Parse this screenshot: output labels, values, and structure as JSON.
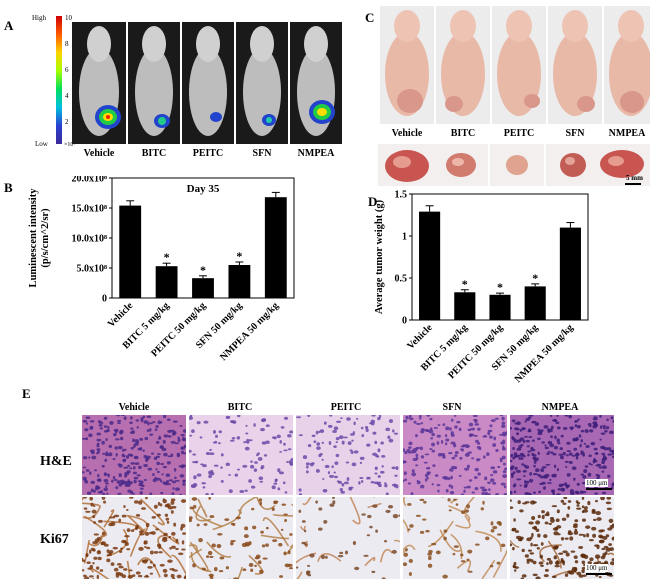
{
  "panels": {
    "a": "A",
    "b": "B",
    "c": "C",
    "d": "D",
    "e": "E"
  },
  "groups": [
    "Vehicle",
    "BITC",
    "PEITC",
    "SFN",
    "NMPEA"
  ],
  "colorbar": {
    "high": "High",
    "low": "Low",
    "ticks": [
      "10",
      "8",
      "6",
      "4",
      "2"
    ],
    "unit": "×10⁶"
  },
  "scale": {
    "tumor": "5 mm",
    "histo": "100 μm"
  },
  "rows": {
    "he": "H&E",
    "ki67": "Ki67"
  },
  "chart_data": [
    {
      "type": "bar",
      "title": "Day 35",
      "ylabel_lines": [
        "Luminescent intensity",
        "(p/s/cm^2/sr)"
      ],
      "categories": [
        "Vehicle",
        "BITC 5 mg/kg",
        "PEITC 50 mg/kg",
        "SFN 50 mg/kg",
        "NMPEA 50 mg/kg"
      ],
      "values": [
        15.4,
        5.3,
        3.3,
        5.5,
        16.8
      ],
      "errors": [
        0.8,
        0.5,
        0.4,
        0.5,
        0.8
      ],
      "significant": [
        false,
        true,
        true,
        true,
        false
      ],
      "ylim": [
        0,
        20
      ],
      "yticks": [
        "0",
        "5.0x10⁸",
        "10.0x10⁸",
        "15.0x10⁸",
        "20.0x10⁸"
      ],
      "ytick_values": [
        0,
        5,
        10,
        15,
        20
      ]
    },
    {
      "type": "bar",
      "ylabel": "Average tumor weight (g)",
      "categories": [
        "Vehicle",
        "BITC 5 mg/kg",
        "PEITC 50 mg/kg",
        "SFN 50 mg/kg",
        "NMPEA 50 mg/kg"
      ],
      "values": [
        1.29,
        0.33,
        0.3,
        0.4,
        1.1
      ],
      "errors": [
        0.07,
        0.03,
        0.02,
        0.03,
        0.06
      ],
      "significant": [
        false,
        true,
        true,
        true,
        false
      ],
      "ylim": [
        0,
        1.5
      ],
      "yticks": [
        "0",
        "0.5",
        "1",
        "1.5"
      ],
      "ytick_values": [
        0,
        0.5,
        1,
        1.5
      ]
    }
  ],
  "marker": "*"
}
